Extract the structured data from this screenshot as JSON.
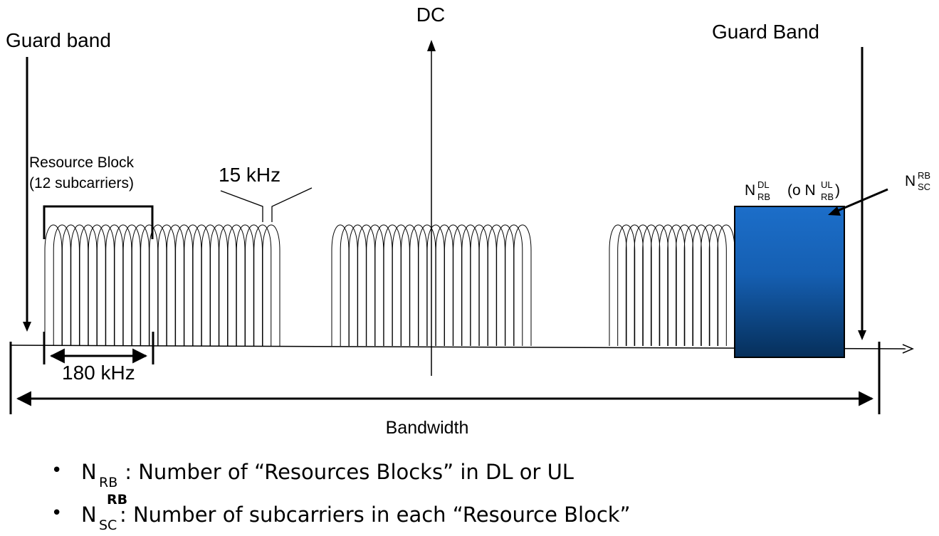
{
  "labels": {
    "dc": "DC",
    "guard_left": "Guard band",
    "guard_right": "Guard Band",
    "rb_line1": "Resource Block",
    "rb_line2": "(12 subcarriers)",
    "spacing": "15 kHz",
    "rb_width": "180 kHz",
    "bandwidth": "Bandwidth",
    "n_letter": "N",
    "rb_sub": "RB",
    "sc_sub": "SC",
    "dl_sup": "DL",
    "ul_sup": "UL",
    "ul_open": "(o ",
    "ul_close": ")"
  },
  "bullets": [
    {
      "sym": "N",
      "sub": "RB",
      "sup": "",
      "text": " : Number of “Resources Blocks” in DL or UL"
    },
    {
      "sym": "N",
      "sub": "SC",
      "sup": "RB",
      "text": ": Number of subcarriers in each “Resource Block”"
    }
  ],
  "colors": {
    "line": "#000000",
    "block_top": "#1c6ec9",
    "block_bottom": "#062f5a"
  }
}
